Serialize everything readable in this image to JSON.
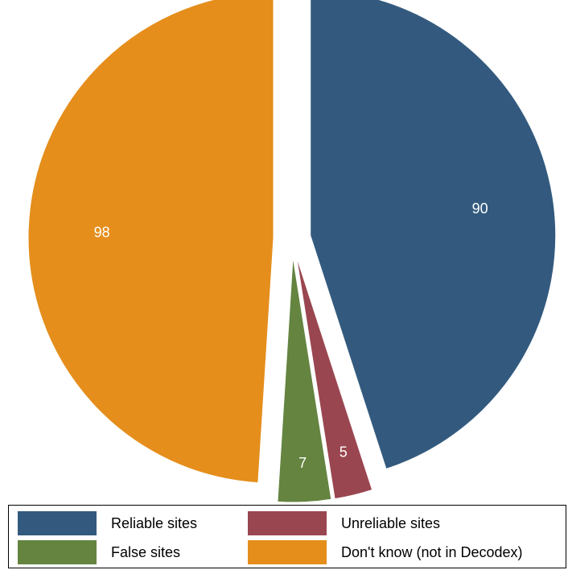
{
  "chart_data": {
    "type": "pie",
    "title": "",
    "slices": [
      {
        "name": "Reliable sites",
        "value": 90,
        "label": "90",
        "color": "#335A7E"
      },
      {
        "name": "Unreliable sites",
        "value": 5,
        "label": "5",
        "color": "#9A4650"
      },
      {
        "name": "False sites",
        "value": 7,
        "label": "7",
        "color": "#648440"
      },
      {
        "name": "Don't know (not in Decodex)",
        "value": 98,
        "label": "98",
        "color": "#E58E1C"
      }
    ],
    "exploded": true,
    "start_angle": "12 o'clock",
    "direction": "clockwise",
    "legend": {
      "position": "bottom",
      "columns": 2,
      "items": [
        "Reliable sites",
        "Unreliable sites",
        "False sites",
        "Don't know (not in Decodex)"
      ]
    }
  }
}
